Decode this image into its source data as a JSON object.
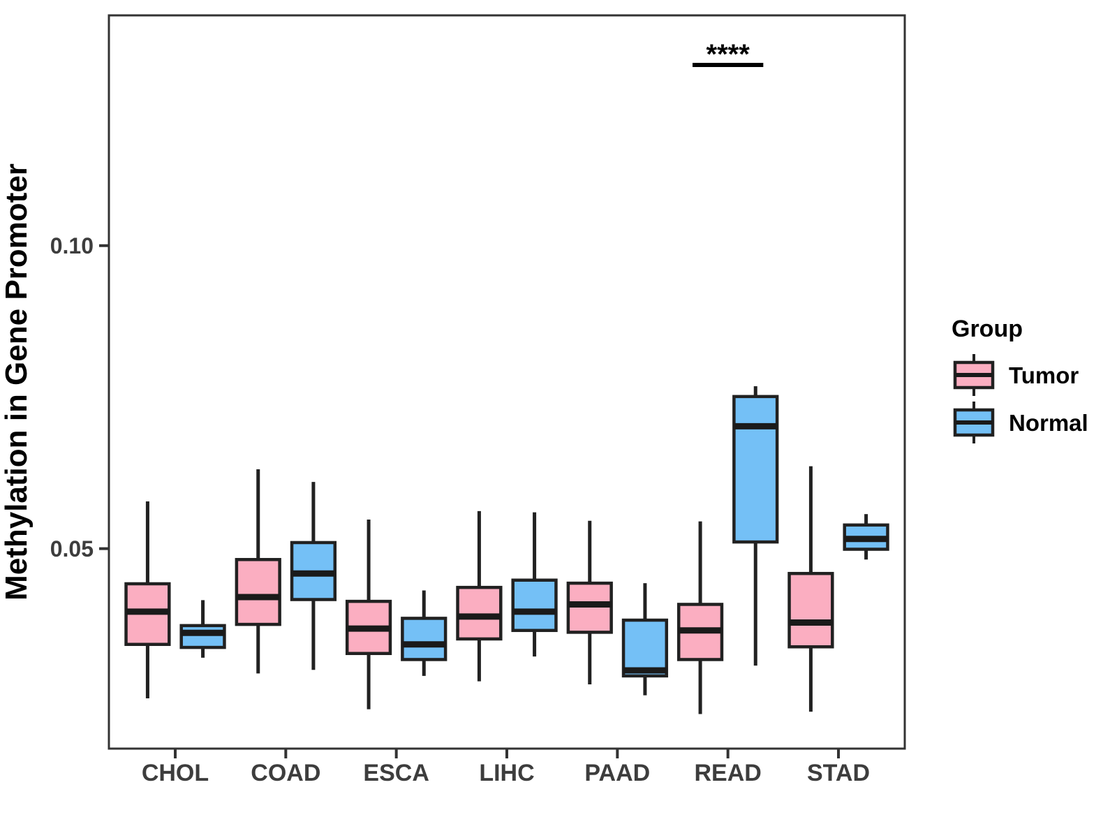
{
  "chart_data": {
    "type": "boxplot",
    "title": "",
    "xlabel": "",
    "ylabel": "Methylation in Gene Promoter",
    "categories": [
      "CHOL",
      "COAD",
      "ESCA",
      "LIHC",
      "PAAD",
      "READ",
      "STAD"
    ],
    "ylim": [
      0.017,
      0.138
    ],
    "yticks": [
      {
        "value": 0.05,
        "label": "0.05"
      },
      {
        "value": 0.1,
        "label": "0.10"
      }
    ],
    "grid": false,
    "legend": {
      "title": "Group",
      "position": "right"
    },
    "series": [
      {
        "name": "Tumor",
        "fill_color": "#FBAEC1",
        "boxes": [
          {
            "category": "CHOL",
            "whisker_low": 0.0253,
            "q1": 0.0342,
            "median": 0.0396,
            "q3": 0.0442,
            "whisker_high": 0.0578
          },
          {
            "category": "COAD",
            "whisker_low": 0.0294,
            "q1": 0.0375,
            "median": 0.042,
            "q3": 0.0482,
            "whisker_high": 0.0631
          },
          {
            "category": "ESCA",
            "whisker_low": 0.0235,
            "q1": 0.0327,
            "median": 0.0368,
            "q3": 0.0413,
            "whisker_high": 0.0548
          },
          {
            "category": "LIHC",
            "whisker_low": 0.0281,
            "q1": 0.0351,
            "median": 0.0388,
            "q3": 0.0436,
            "whisker_high": 0.0562
          },
          {
            "category": "PAAD",
            "whisker_low": 0.0276,
            "q1": 0.0362,
            "median": 0.0408,
            "q3": 0.0443,
            "whisker_high": 0.0546
          },
          {
            "category": "READ",
            "whisker_low": 0.0227,
            "q1": 0.0317,
            "median": 0.0365,
            "q3": 0.0408,
            "whisker_high": 0.0545
          },
          {
            "category": "STAD",
            "whisker_low": 0.0231,
            "q1": 0.0338,
            "median": 0.0378,
            "q3": 0.0459,
            "whisker_high": 0.0636
          }
        ]
      },
      {
        "name": "Normal",
        "fill_color": "#74C0F6",
        "boxes": [
          {
            "category": "CHOL",
            "whisker_low": 0.032,
            "q1": 0.0337,
            "median": 0.0361,
            "q3": 0.0373,
            "whisker_high": 0.0415
          },
          {
            "category": "COAD",
            "whisker_low": 0.03,
            "q1": 0.0416,
            "median": 0.0459,
            "q3": 0.051,
            "whisker_high": 0.061
          },
          {
            "category": "ESCA",
            "whisker_low": 0.029,
            "q1": 0.0317,
            "median": 0.0342,
            "q3": 0.0385,
            "whisker_high": 0.0431
          },
          {
            "category": "LIHC",
            "whisker_low": 0.0322,
            "q1": 0.0365,
            "median": 0.0396,
            "q3": 0.0448,
            "whisker_high": 0.056
          },
          {
            "category": "PAAD",
            "whisker_low": 0.0258,
            "q1": 0.029,
            "median": 0.0299,
            "q3": 0.0382,
            "whisker_high": 0.0443
          },
          {
            "category": "READ",
            "whisker_low": 0.0307,
            "q1": 0.0511,
            "median": 0.0702,
            "q3": 0.0751,
            "whisker_high": 0.0768
          },
          {
            "category": "STAD",
            "whisker_low": 0.0482,
            "q1": 0.0499,
            "median": 0.0516,
            "q3": 0.0539,
            "whisker_high": 0.0557
          }
        ]
      }
    ],
    "annotations": [
      {
        "type": "significance",
        "text": "****",
        "category": "READ"
      }
    ]
  },
  "colors": {
    "tumor_fill": "#FBAEC1",
    "normal_fill": "#74C0F6",
    "box_outline": "#212121",
    "median_line": "#1A1A1A",
    "panel_border": "#333333",
    "axis_text": "#3D3D3D",
    "axis_title": "#000000",
    "significance": "#000000",
    "background": "#FFFFFF"
  }
}
